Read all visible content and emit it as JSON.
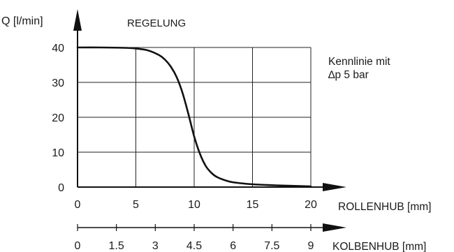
{
  "chart_data": {
    "type": "line",
    "title": "REGELUNG",
    "ylabel": "Q [l/min]",
    "xlabel": "ROLLENHUB [mm]",
    "x2label": "KOLBENHUB [mm]",
    "annotation_line1": "Kennlinie mit",
    "annotation_line2": "∆p 5 bar",
    "xlim": [
      0,
      20
    ],
    "ylim": [
      0,
      40
    ],
    "x_ticks": [
      0,
      5,
      10,
      15,
      20
    ],
    "x_tick_labels": [
      "0",
      "5",
      "10",
      "15",
      "20"
    ],
    "y_ticks": [
      0,
      10,
      20,
      30,
      40
    ],
    "y_tick_labels": [
      "0",
      "10",
      "20",
      "30",
      "40"
    ],
    "x2_ticks": [
      0,
      1.5,
      3,
      4.5,
      6,
      7.5,
      9
    ],
    "x2_tick_labels": [
      "0",
      "1.5",
      "3",
      "4.5",
      "6",
      "7.5",
      "9"
    ],
    "x2lim": [
      0,
      9
    ],
    "grid": true,
    "series": [
      {
        "x": [
          0,
          2,
          4,
          5,
          6,
          7,
          7.5,
          8,
          8.5,
          9,
          9.5,
          10,
          10.5,
          11,
          11.5,
          12,
          13,
          14,
          15,
          17,
          20
        ],
        "y": [
          40,
          40,
          39.9,
          39.7,
          39.2,
          37.8,
          36.5,
          34.5,
          31.5,
          27,
          21,
          14.5,
          9.5,
          6,
          4,
          2.8,
          1.6,
          1.1,
          0.8,
          0.5,
          0.2
        ]
      }
    ],
    "colors": {
      "line": "#111111",
      "axis": "#111111",
      "grid": "#222222"
    }
  }
}
